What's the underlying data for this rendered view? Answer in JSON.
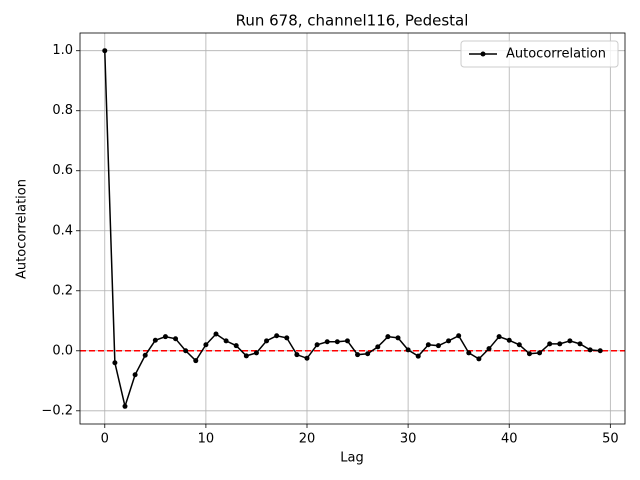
{
  "chart_data": {
    "type": "line",
    "title": "Run 678, channel116, Pedestal",
    "xlabel": "Lag",
    "ylabel": "Autocorrelation",
    "x": [
      0,
      1,
      2,
      3,
      4,
      5,
      6,
      7,
      8,
      9,
      10,
      11,
      12,
      13,
      14,
      15,
      16,
      17,
      18,
      19,
      20,
      21,
      22,
      23,
      24,
      25,
      26,
      27,
      28,
      29,
      30,
      31,
      32,
      33,
      34,
      35,
      36,
      37,
      38,
      39,
      40,
      41,
      42,
      43,
      44,
      45,
      46,
      47,
      48,
      49
    ],
    "series": [
      {
        "name": "Autocorrelation",
        "color": "#000000",
        "values": [
          1.0,
          -0.04,
          -0.185,
          -0.08,
          -0.015,
          0.035,
          0.047,
          0.04,
          0.0,
          -0.033,
          0.02,
          0.056,
          0.033,
          0.017,
          -0.017,
          -0.007,
          0.033,
          0.05,
          0.043,
          -0.013,
          -0.025,
          0.02,
          0.03,
          0.03,
          0.033,
          -0.013,
          -0.01,
          0.013,
          0.047,
          0.043,
          0.003,
          -0.018,
          0.02,
          0.017,
          0.033,
          0.05,
          -0.007,
          -0.027,
          0.007,
          0.047,
          0.035,
          0.02,
          -0.01,
          -0.007,
          0.023,
          0.023,
          0.033,
          0.023,
          0.003,
          0.0
        ]
      }
    ],
    "hline": {
      "value": 0,
      "color": "#ff0000"
    },
    "xlim": [
      -2.45,
      51.45
    ],
    "xticks": [
      0,
      10,
      20,
      30,
      40,
      50
    ],
    "ylim": [
      -0.244,
      1.059
    ],
    "yticks": [
      {
        "value": -0.2,
        "label": "−0.2"
      },
      {
        "value": 0,
        "label": "0.0"
      },
      {
        "value": 0.2,
        "label": "0.2"
      },
      {
        "value": 0.4,
        "label": "0.4"
      },
      {
        "value": 0.6,
        "label": "0.6"
      },
      {
        "value": 0.8,
        "label": "0.8"
      },
      {
        "value": 1.0,
        "label": "1.0"
      }
    ],
    "grid": true,
    "legend": "upper right"
  }
}
